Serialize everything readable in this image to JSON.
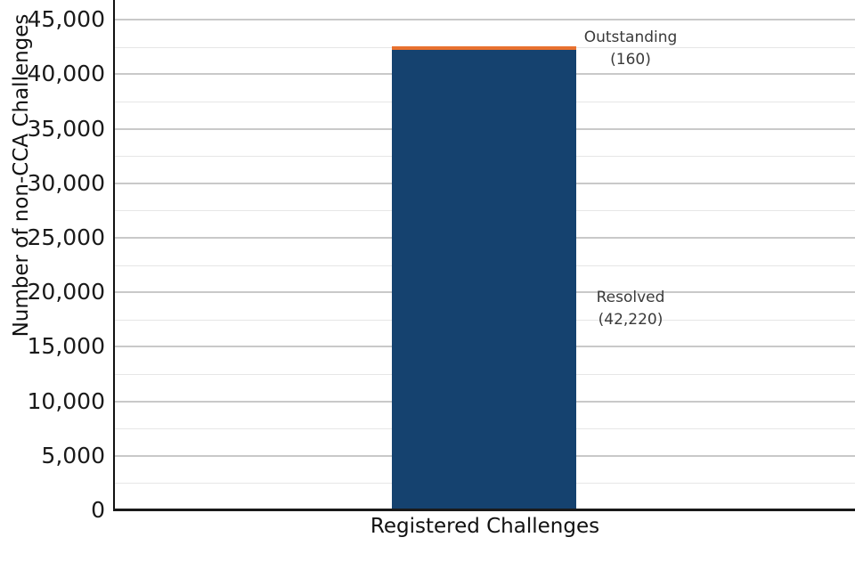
{
  "chart_data": {
    "type": "bar",
    "stacked": true,
    "title": "",
    "xlabel": "Registered Challenges",
    "ylabel": "Number of non-CCA Challenges",
    "categories": [
      "Registered Challenges"
    ],
    "series": [
      {
        "name": "Resolved",
        "values": [
          42220
        ],
        "color": "#15426F"
      },
      {
        "name": "Outstanding",
        "values": [
          160
        ],
        "color": "#E8712F"
      }
    ],
    "ylim": [
      0,
      46800
    ],
    "yticks": [
      0,
      5000,
      10000,
      15000,
      20000,
      25000,
      30000,
      35000,
      40000,
      45000
    ],
    "ytick_labels": [
      "0",
      "5,000",
      "10,000",
      "15,000",
      "20,000",
      "25,000",
      "30,000",
      "35,000",
      "40,000",
      "45,000"
    ],
    "minor_grid_step": 2500,
    "grid": "horizontal",
    "legend_position": "none"
  },
  "annotations": {
    "outstanding": {
      "label": "Outstanding",
      "value": "(160)"
    },
    "resolved": {
      "label": "Resolved",
      "value": "(42,220)"
    }
  },
  "colors": {
    "resolved_bar": "#15426F",
    "outstanding_bar": "#E8712F",
    "major_gridline": "#c9c9c9",
    "minor_gridline": "#e6e6e6",
    "axis_spine": "#1a1a1a",
    "text": "#1a1a1a"
  }
}
